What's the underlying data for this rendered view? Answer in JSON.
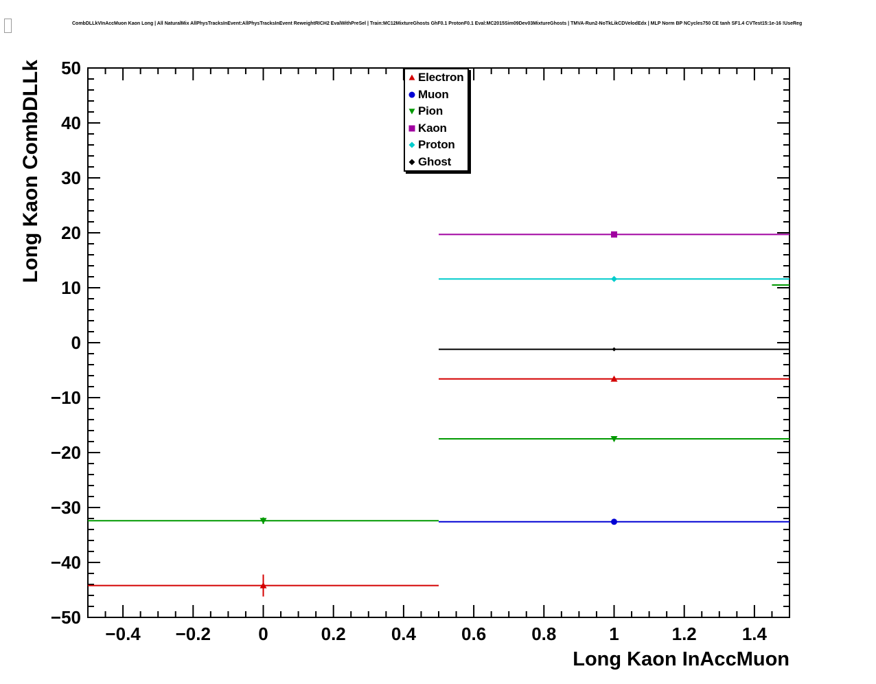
{
  "chart_data": {
    "type": "line",
    "title": "CombDLLkVInAccMuon Kaon Long | All NaturalMix AllPhysTracksInEvent:AllPhysTracksInEvent ReweightRICH2 EvalWithPreSel | Train:MC12MixtureGhosts GhF0.1 ProtonF0.1 Eval:MC2015Sim09Dev03MixtureGhosts | TMVA-Run2-NoTkLikCDVelodEdx | MLP Norm BP NCycles750 CE tanh SF1.4 CVTest15:1e-16 !UseReg",
    "xlabel": "Long Kaon InAccMuon",
    "ylabel": "Long Kaon CombDLLk",
    "xlim": [
      -0.5,
      1.5
    ],
    "ylim": [
      -50,
      50
    ],
    "grid": false,
    "legend_position": "top-center",
    "x_ticks": {
      "major": [
        -0.4,
        -0.2,
        0,
        0.2,
        0.4,
        0.6,
        0.8,
        1,
        1.2,
        1.4
      ],
      "labels": [
        "−0.4",
        "−0.2",
        "0",
        "0.2",
        "0.4",
        "0.6",
        "0.8",
        "1",
        "1.2",
        "1.4"
      ],
      "minor_step": 0.05
    },
    "y_ticks": {
      "major": [
        50,
        40,
        30,
        20,
        10,
        0,
        -10,
        -20,
        -30,
        -40,
        -50
      ],
      "labels": [
        "50",
        "40",
        "30",
        "20",
        "10",
        "0",
        "−10",
        "−20",
        "−30",
        "−40",
        "−50"
      ],
      "minor_step": 2
    },
    "series": [
      {
        "name": "Electron",
        "color": "#d40000",
        "marker": "triangle-up",
        "marker_size": 5,
        "points": [
          {
            "x": 0,
            "y": -44.2,
            "xlo": -0.5,
            "xhi": 0.5,
            "yerr": 2.0
          },
          {
            "x": 1,
            "y": -6.6,
            "xlo": 0.5,
            "xhi": 1.5,
            "yerr": 0.3
          }
        ]
      },
      {
        "name": "Muon",
        "color": "#0000d4",
        "marker": "circle",
        "marker_size": 4.5,
        "points": [
          {
            "x": 1,
            "y": -32.6,
            "xlo": 0.5,
            "xhi": 1.5,
            "yerr": 0.3
          }
        ]
      },
      {
        "name": "Pion",
        "color": "#009900",
        "marker": "triangle-down",
        "marker_size": 5,
        "points": [
          {
            "x": 0,
            "y": -32.4,
            "xlo": -0.5,
            "xhi": 0.5,
            "yerr": 0.6
          },
          {
            "x": 1,
            "y": -17.5,
            "xlo": 0.5,
            "xhi": 1.5,
            "yerr": 0.3
          }
        ]
      },
      {
        "name": "Kaon",
        "color": "#a000a0",
        "marker": "square",
        "marker_size": 4.5,
        "points": [
          {
            "x": 1,
            "y": 19.7,
            "xlo": 0.5,
            "xhi": 1.5,
            "yerr": 0.4
          }
        ]
      },
      {
        "name": "Proton",
        "color": "#00cccc",
        "marker": "diamond",
        "marker_size": 4.5,
        "points": [
          {
            "x": 1,
            "y": 11.6,
            "xlo": 0.5,
            "xhi": 1.5,
            "yerr": 0.3
          }
        ]
      },
      {
        "name": "Ghost",
        "color": "#000000",
        "marker": "diamond",
        "marker_size": 3,
        "points": [
          {
            "x": 1,
            "y": -1.2,
            "xlo": 0.5,
            "xhi": 1.5,
            "yerr": 0.2
          }
        ]
      }
    ],
    "extra_segments": [
      {
        "color": "#009900",
        "y": 10.5,
        "x1": 1.45,
        "x2": 1.5
      }
    ]
  }
}
